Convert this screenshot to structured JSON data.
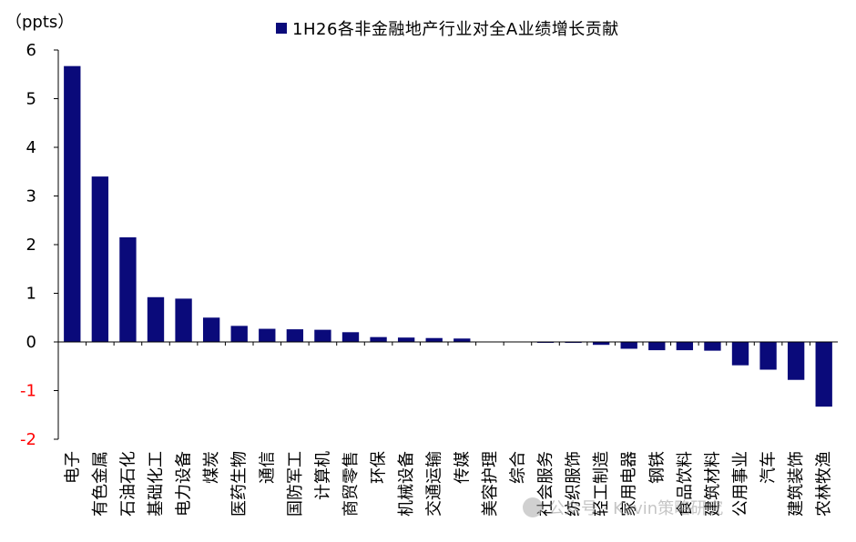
{
  "chart_data": {
    "type": "bar",
    "unit_label": "（ppts）",
    "legend_label": "1H26各非金融地产行业对全A业绩增长贡献",
    "series": [
      {
        "name": "1H26各非金融地产行业对全A业绩增长贡献",
        "values": [
          5.67,
          3.4,
          2.15,
          0.92,
          0.89,
          0.5,
          0.33,
          0.27,
          0.26,
          0.25,
          0.2,
          0.1,
          0.09,
          0.08,
          0.07,
          0.0,
          0.0,
          -0.01,
          -0.02,
          -0.06,
          -0.14,
          -0.17,
          -0.17,
          -0.18,
          -0.48,
          -0.57,
          -0.78,
          -1.33
        ]
      }
    ],
    "categories": [
      "电子",
      "有色金属",
      "石油石化",
      "基础化工",
      "电力设备",
      "煤炭",
      "医药生物",
      "通信",
      "国防军工",
      "计算机",
      "商贸零售",
      "环保",
      "机械设备",
      "交通运输",
      "传媒",
      "美容护理",
      "综合",
      "社会服务",
      "纺织服饰",
      "轻工制造",
      "家用电器",
      "钢铁",
      "食品饮料",
      "建筑材料",
      "公用事业",
      "汽车",
      "建筑装饰",
      "农林牧渔"
    ],
    "yticks": [
      "-2",
      "-1",
      "0",
      "1",
      "2",
      "3",
      "4",
      "5",
      "6"
    ],
    "ylim": [
      -2,
      6
    ],
    "colors": {
      "bar": "#0a0a7a",
      "axis": "#000000",
      "negative_tick": "#ff0000"
    }
  },
  "watermark": "公众号 · Kevin策略研究"
}
